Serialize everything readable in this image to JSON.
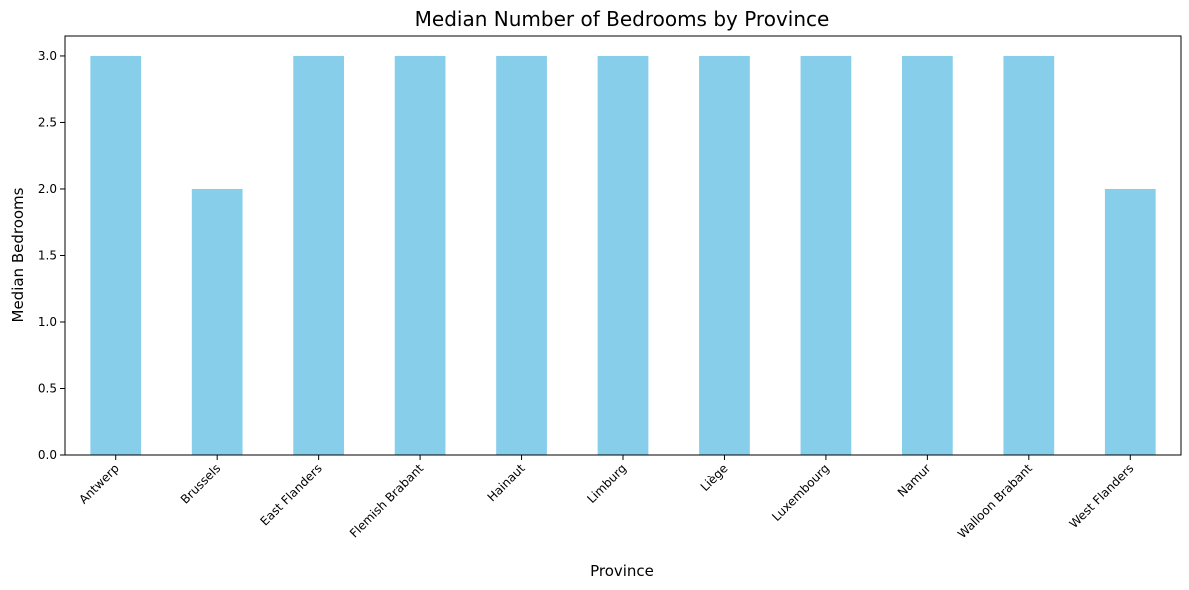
{
  "chart_data": {
    "type": "bar",
    "title": "Median Number of Bedrooms by Province",
    "xlabel": "Province",
    "ylabel": "Median Bedrooms",
    "categories": [
      "Antwerp",
      "Brussels",
      "East Flanders",
      "Flemish Brabant",
      "Hainaut",
      "Limburg",
      "Liège",
      "Luxembourg",
      "Namur",
      "Walloon Brabant",
      "West Flanders"
    ],
    "values": [
      3,
      2,
      3,
      3,
      3,
      3,
      3,
      3,
      3,
      3,
      2
    ],
    "ylim": [
      0,
      3.15
    ],
    "yticks": [
      "0.0",
      "0.5",
      "1.0",
      "1.5",
      "2.0",
      "2.5",
      "3.0"
    ],
    "grid": false,
    "legend": "none",
    "bar_color": "#87CEEB"
  }
}
